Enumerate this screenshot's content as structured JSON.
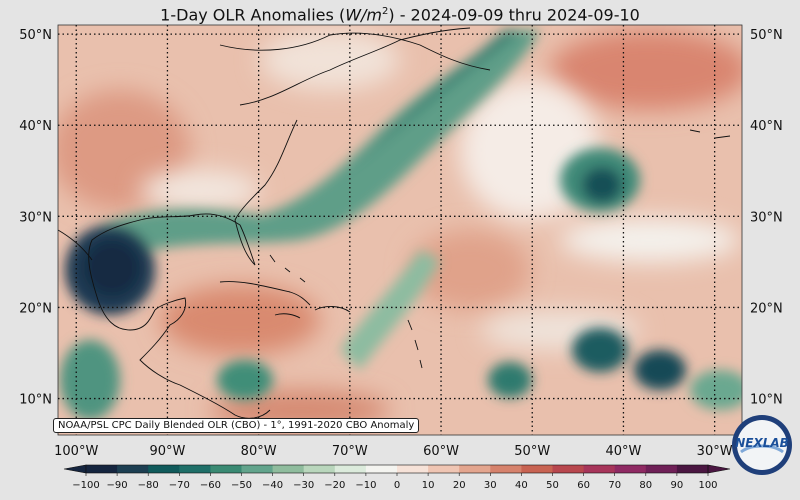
{
  "title": {
    "prefix": "1-Day OLR Anomalies (",
    "unit_var": "W/m",
    "unit_exp": "2",
    "suffix": ") - 2024-09-09 thru 2024-09-10"
  },
  "map": {
    "region": "Atlantic / Caribbean / Eastern North America",
    "latitudes": [
      {
        "value": 10,
        "label": "10°N"
      },
      {
        "value": 20,
        "label": "20°N"
      },
      {
        "value": 30,
        "label": "30°N"
      },
      {
        "value": 40,
        "label": "40°N"
      },
      {
        "value": 50,
        "label": "50°N"
      }
    ],
    "longitudes": [
      {
        "value": -100,
        "label": "100°W"
      },
      {
        "value": -90,
        "label": "90°W"
      },
      {
        "value": -80,
        "label": "80°W"
      },
      {
        "value": -70,
        "label": "70°W"
      },
      {
        "value": -60,
        "label": "60°W"
      },
      {
        "value": -50,
        "label": "50°W"
      },
      {
        "value": -40,
        "label": "40°W"
      },
      {
        "value": -30,
        "label": "30°W"
      }
    ],
    "lon_range": [
      -102,
      -27
    ],
    "lat_range": [
      6,
      51
    ],
    "anomaly_features": [
      {
        "name": "Gulf of Mexico deep convection",
        "lon": -94,
        "lat": 24.5,
        "anomaly": -90
      },
      {
        "name": "Atlantic coastal convective band",
        "lon": -74,
        "lat": 33,
        "anomaly": -50
      },
      {
        "name": "Mid-Atlantic low",
        "lon": -41.5,
        "lat": 33,
        "anomaly": -70
      },
      {
        "name": "ITCZ cluster 1",
        "lon": -42,
        "lat": 16,
        "anomaly": -65
      },
      {
        "name": "ITCZ cluster 2",
        "lon": -34,
        "lat": 13.5,
        "anomaly": -70
      },
      {
        "name": "ITCZ cluster 3",
        "lon": -51,
        "lat": 12.5,
        "anomaly": -55
      },
      {
        "name": "Central America",
        "lon": -80,
        "lat": 12,
        "anomaly": -45
      },
      {
        "name": "Caribbean suppressed",
        "lon": -77,
        "lat": 20,
        "anomaly": 30
      },
      {
        "name": "NE Atlantic suppressed",
        "lon": -34,
        "lat": 46,
        "anomaly": 40
      }
    ]
  },
  "colorbar": {
    "ticks": [
      "−100",
      "−90",
      "−80",
      "−70",
      "−60",
      "−50",
      "−40",
      "−30",
      "−20",
      "−10",
      "0",
      "10",
      "20",
      "30",
      "40",
      "50",
      "60",
      "70",
      "80",
      "90",
      "100"
    ],
    "colors": [
      "#15253f",
      "#1d3f52",
      "#105a5b",
      "#1f6f68",
      "#3a8a73",
      "#62a48c",
      "#8fbc9d",
      "#b9d6bc",
      "#dcebdc",
      "#f4f4f0",
      "#f6e2d8",
      "#efc5b3",
      "#e3a58e",
      "#d6826c",
      "#c86352",
      "#b8474e",
      "#a7355a",
      "#8f2a63",
      "#6f2057",
      "#4a1641"
    ]
  },
  "credit": "NOAA/PSL CPC Daily Blended OLR (CBO) - 1°, 1991-2020 CBO Anomaly",
  "logo": "NEXLAB"
}
